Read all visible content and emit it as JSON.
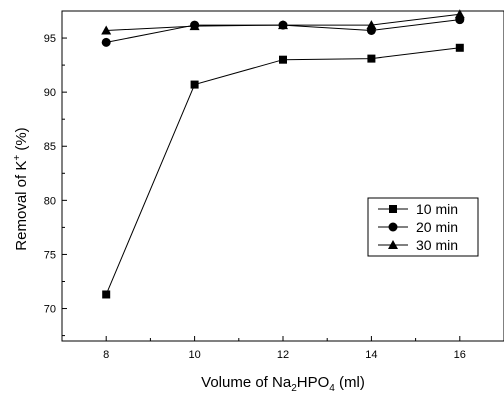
{
  "chart_data": {
    "type": "line",
    "xlabel": {
      "prefix": "Volume of Na",
      "sub1": "2",
      "mid": "HPO",
      "sub2": "4",
      "suffix": " (ml)"
    },
    "ylabel": {
      "prefix": "Removal of K",
      "sup": "+",
      "suffix": " (%)"
    },
    "xlim": [
      7,
      17
    ],
    "ylim": [
      67,
      97.5
    ],
    "xticks": [
      8,
      10,
      12,
      14,
      16
    ],
    "yticks": [
      70,
      75,
      80,
      85,
      90,
      95
    ],
    "grid": false,
    "legend_position": "right",
    "series": [
      {
        "name": "10 min",
        "marker": "square",
        "x": [
          8,
          10,
          12,
          14,
          16
        ],
        "values": [
          71.3,
          90.7,
          93.0,
          93.1,
          94.1
        ]
      },
      {
        "name": "20 min",
        "marker": "circle",
        "x": [
          8,
          10,
          12,
          14,
          16
        ],
        "values": [
          94.6,
          96.2,
          96.2,
          95.7,
          96.7
        ]
      },
      {
        "name": "30 min",
        "marker": "triangle",
        "x": [
          8,
          10,
          12,
          14,
          16
        ],
        "values": [
          95.7,
          96.1,
          96.2,
          96.2,
          97.2
        ]
      }
    ]
  }
}
